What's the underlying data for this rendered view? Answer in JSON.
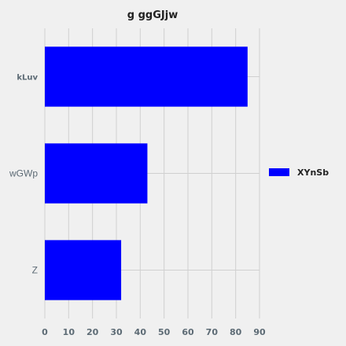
{
  "chart_data": {
    "type": "bar",
    "orientation": "horizontal",
    "title": "g ggGJjw",
    "xlabel": "",
    "ylabel": "",
    "categories": [
      "kLuv",
      "wGWp",
      "Z"
    ],
    "series": [
      {
        "name": "XYnSb",
        "values": [
          85,
          43,
          32
        ],
        "color": "#0000ff"
      }
    ],
    "xlim": [
      0,
      90
    ],
    "xticks": [
      0,
      10,
      20,
      30,
      40,
      50,
      60,
      70,
      80,
      90
    ],
    "grid": true,
    "legend_position": "right",
    "background": "#f0f0f0"
  }
}
